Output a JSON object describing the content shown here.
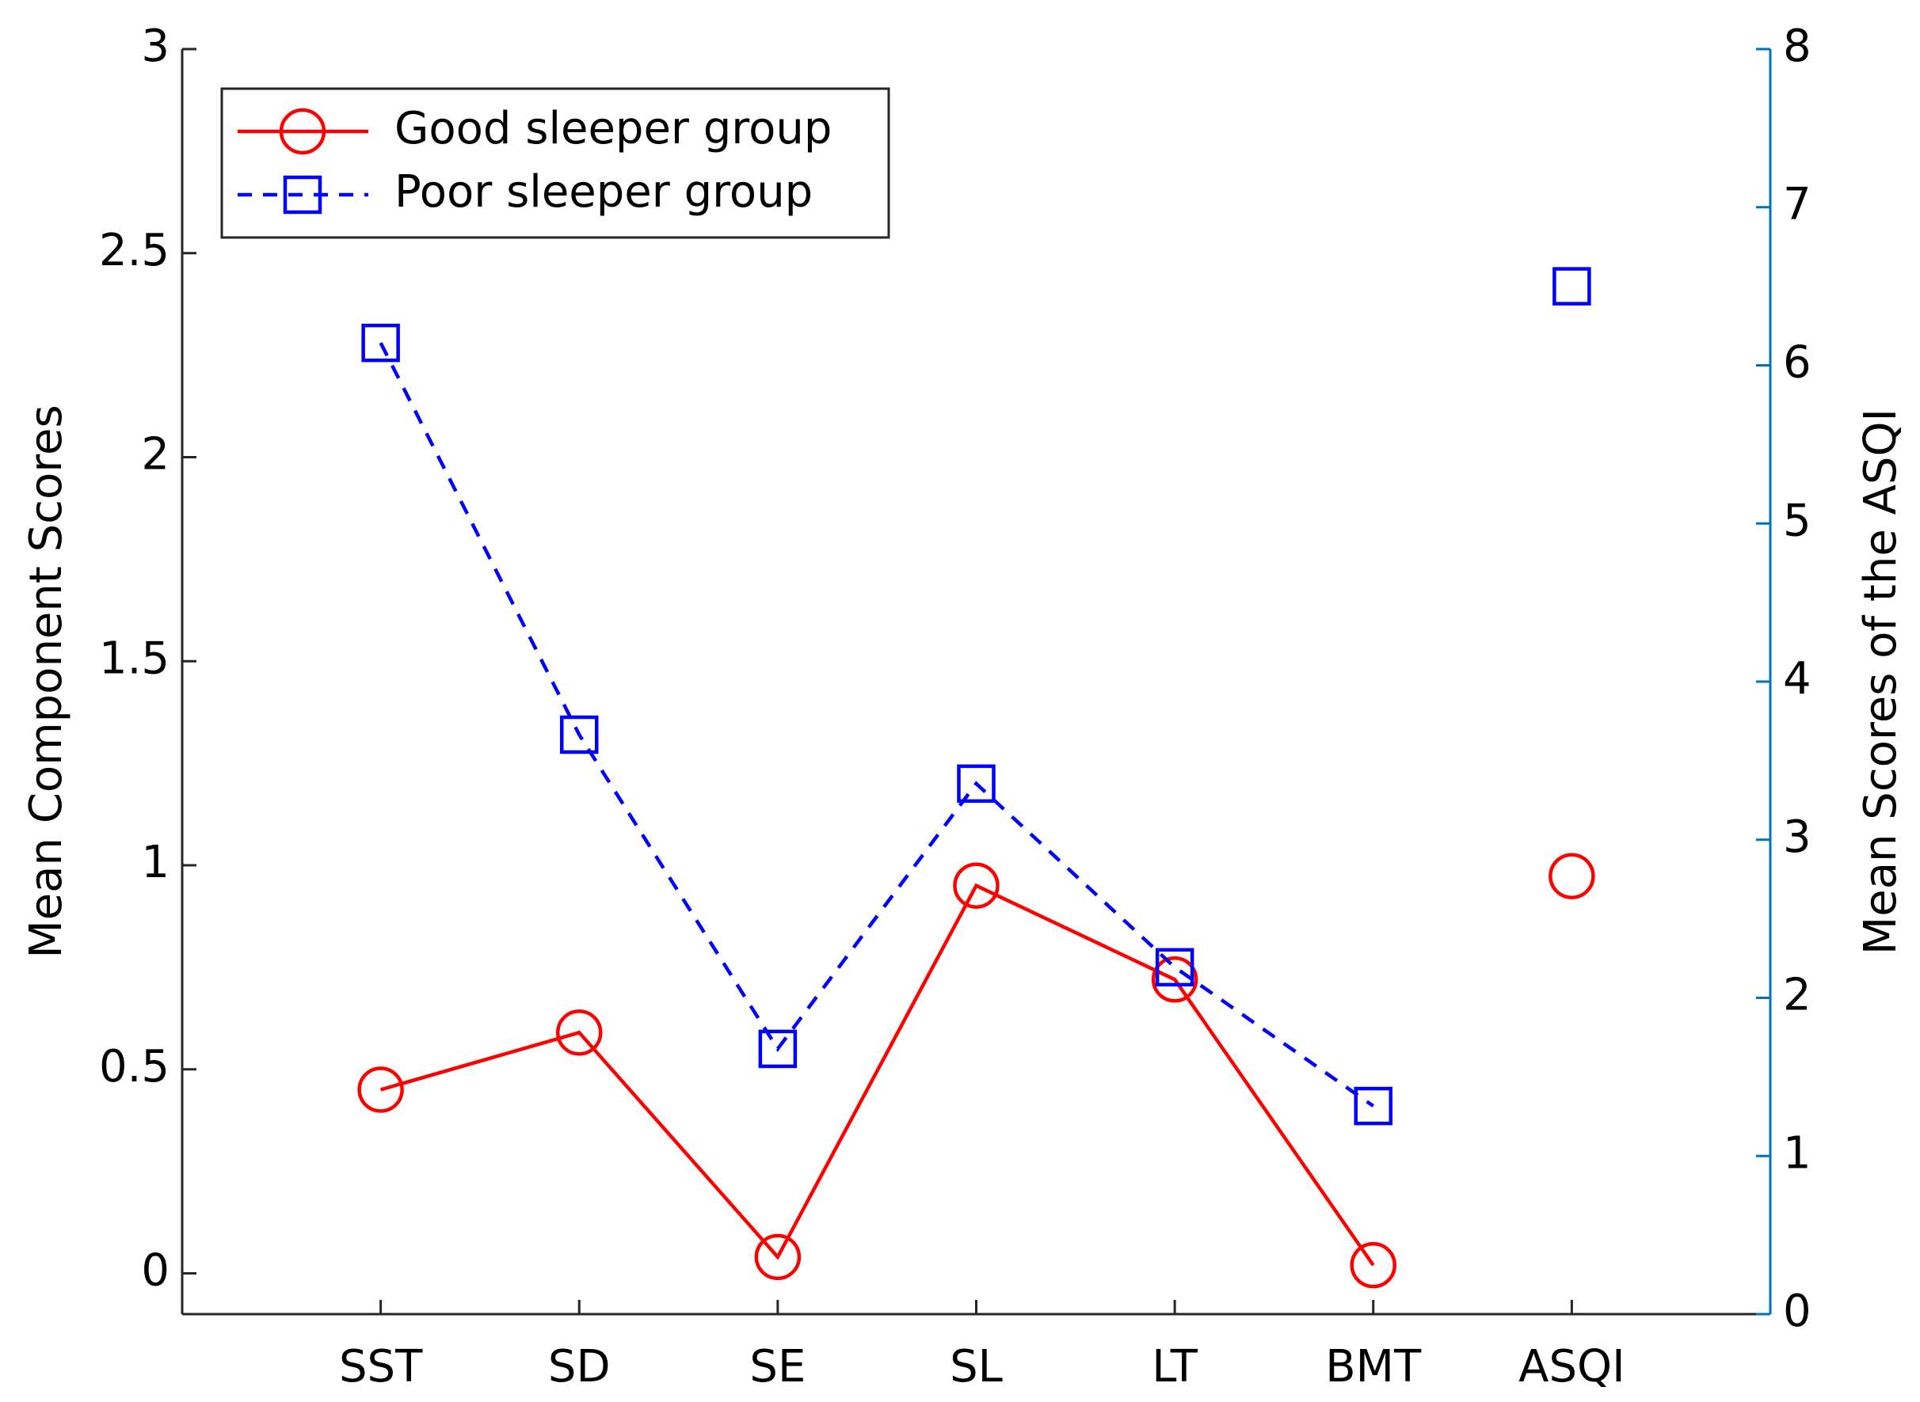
{
  "chart_data": {
    "type": "line",
    "categories": [
      "SST",
      "SD",
      "SE",
      "SL",
      "LT",
      "BMT",
      "ASQI"
    ],
    "xlim": [
      0,
      8
    ],
    "ylabel": "Mean Component Scores",
    "y2label": "Mean Scores of the ASQI",
    "ylim": [
      -0.1,
      3
    ],
    "yticks": [
      0,
      0.5,
      1,
      1.5,
      2,
      2.5,
      3
    ],
    "y2lim": [
      0,
      8
    ],
    "y2ticks": [
      0,
      1,
      2,
      3,
      4,
      5,
      6,
      7,
      8
    ],
    "y2color": "#0072bd",
    "legend": "northwest",
    "series": [
      {
        "name": "Good sleeper group",
        "color": "#ff0000",
        "line": "solid",
        "marker": "circle",
        "values": [
          0.45,
          0.59,
          0.04,
          0.95,
          0.72,
          0.02,
          null
        ]
      },
      {
        "name": "Poor sleeper group",
        "color": "#0000ff",
        "line": "dashed",
        "marker": "square",
        "values": [
          2.28,
          1.32,
          0.55,
          1.2,
          0.75,
          0.41,
          null
        ]
      },
      {
        "color": "#ff0000",
        "line": "none",
        "marker": "circle",
        "axis": "y2",
        "values": [
          null,
          null,
          null,
          null,
          null,
          null,
          2.77
        ]
      },
      {
        "color": "#0000ff",
        "line": "none",
        "marker": "square",
        "axis": "y2",
        "values": [
          null,
          null,
          null,
          null,
          null,
          null,
          6.5
        ]
      }
    ]
  }
}
